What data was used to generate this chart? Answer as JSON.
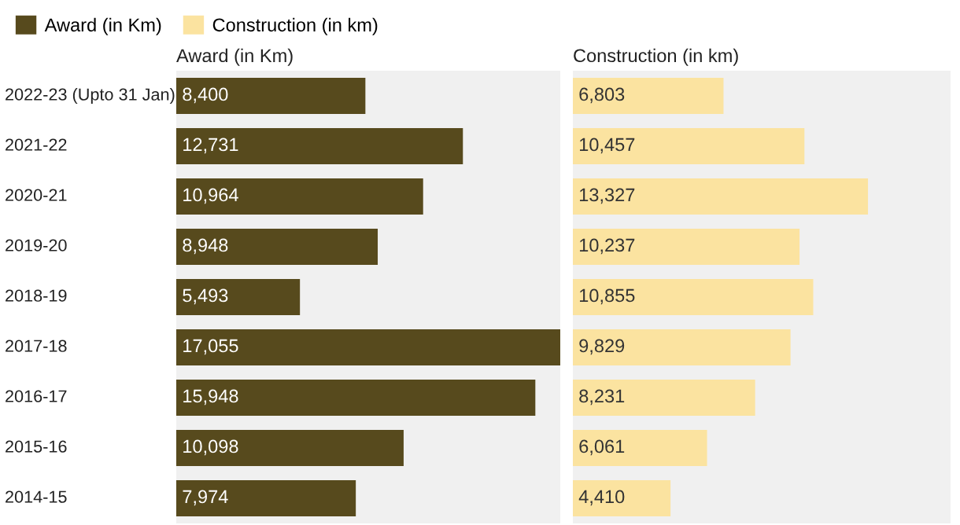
{
  "chart_data": [
    {
      "type": "bar",
      "orientation": "horizontal",
      "title": "Award (in Km)",
      "categories": [
        "2022-23 (Upto 31 Jan)",
        "2021-22",
        "2020-21",
        "2019-20",
        "2018-19",
        "2017-18",
        "2016-17",
        "2015-16",
        "2014-15"
      ],
      "series": [
        {
          "name": "Award (in Km)",
          "color": "#574a1d",
          "values": [
            8400,
            12731,
            10964,
            8948,
            5493,
            17055,
            15948,
            10098,
            7974
          ],
          "value_labels": [
            "8,400",
            "12,731",
            "10,964",
            "8,948",
            "5,493",
            "17,055",
            "15,948",
            "10,098",
            "7,974"
          ]
        }
      ],
      "tick_labels": "y",
      "legend": "top left"
    },
    {
      "type": "bar",
      "orientation": "horizontal",
      "title": "Construction (in km)",
      "series": [
        {
          "name": "Construction (in km)",
          "color": "#fbe3a0",
          "values": [
            6803,
            10457,
            13327,
            10237,
            10855,
            9829,
            8231,
            6061,
            4410
          ],
          "value_labels": [
            "6,803",
            "10,457",
            "13,327",
            "10,237",
            "10,855",
            "9,829",
            "8,231",
            "6,061",
            "4,410"
          ]
        }
      ],
      "tick_labels": false
    }
  ]
}
